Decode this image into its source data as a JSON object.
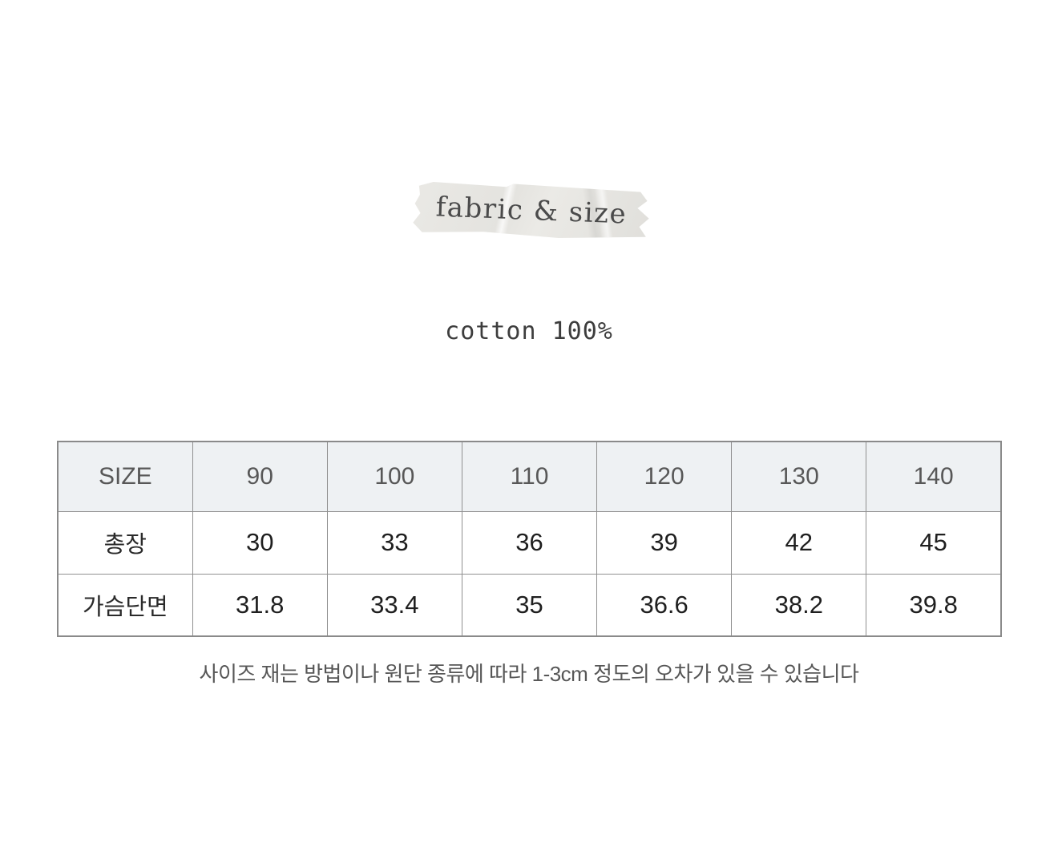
{
  "header": {
    "tape_label": "fabric & size"
  },
  "fabric": {
    "composition": "cotton 100%"
  },
  "size_table": {
    "columns": [
      "SIZE",
      "90",
      "100",
      "110",
      "120",
      "130",
      "140"
    ],
    "rows": [
      {
        "label": "총장",
        "values": [
          "30",
          "33",
          "36",
          "39",
          "42",
          "45"
        ]
      },
      {
        "label": "가슴단면",
        "values": [
          "31.8",
          "33.4",
          "35",
          "36.6",
          "38.2",
          "39.8"
        ]
      }
    ]
  },
  "note": {
    "text": "사이즈 재는 방법이나 원단 종류에 따라 1-3cm 정도의 오차가 있을 수 있습니다"
  },
  "colors": {
    "header_row_bg": "#eef1f3",
    "table_border": "#909090",
    "tape_bg": "#e6e5e1",
    "body_text": "#1f1f1f",
    "muted_text": "#575757"
  }
}
